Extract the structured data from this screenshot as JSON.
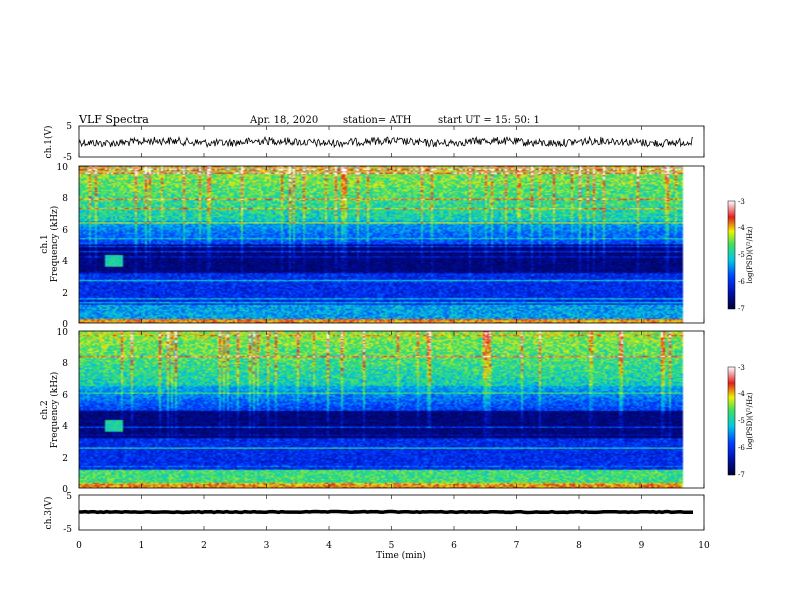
{
  "header": {
    "title": "VLF  Spectra",
    "date": "Apr. 18, 2020",
    "station": "station= ATH",
    "start": "start  UT  =    15: 50: 1"
  },
  "chart_data": [
    {
      "type": "line",
      "panel": "ch1-waveform",
      "ylabel": "ch.1(V)",
      "ylim": [
        -5,
        5
      ],
      "yticks": [
        "5",
        "-5"
      ],
      "xlim": [
        0,
        10
      ],
      "note": "noisy signal centred near 0 V"
    },
    {
      "type": "heatmap",
      "panel": "ch1-spectrogram",
      "ylabel_top": "ch.1",
      "ylabel": "Frequency  (kHz)",
      "ylim": [
        0,
        10
      ],
      "yticks": [
        "0",
        "2",
        "4",
        "6",
        "8",
        "10"
      ],
      "xlim": [
        0,
        10
      ],
      "colorbar": {
        "label": "log(PSD)(V²/Hz)",
        "ticks": [
          "-3",
          "-4",
          "-5",
          "-6",
          "-7"
        ],
        "range": [
          -7,
          -3
        ]
      }
    },
    {
      "type": "heatmap",
      "panel": "ch2-spectrogram",
      "ylabel_top": "ch.2",
      "ylabel": "Frequency  (kHz)",
      "ylim": [
        0,
        10
      ],
      "yticks": [
        "0",
        "2",
        "4",
        "6",
        "8",
        "10"
      ],
      "xlim": [
        0,
        10
      ],
      "colorbar": {
        "label": "log(PSD)(V²/Hz)",
        "ticks": [
          "-3",
          "-4",
          "-5",
          "-6",
          "-7"
        ],
        "range": [
          -7,
          -3
        ]
      }
    },
    {
      "type": "line",
      "panel": "ch3-waveform",
      "ylabel": "ch.3(V)",
      "ylim": [
        -5,
        5
      ],
      "yticks": [
        "5",
        "-5"
      ],
      "xlim": [
        0,
        10
      ],
      "xlabel": "Time  (min)",
      "xticks": [
        "0",
        "1",
        "2",
        "3",
        "4",
        "5",
        "6",
        "7",
        "8",
        "9",
        "10"
      ],
      "note": "near-constant level around -1 V"
    }
  ],
  "colors": {
    "deep": "#000033",
    "blue": "#1020d0",
    "cyan": "#00c8e6",
    "green": "#40e060",
    "yellow": "#f0f000",
    "red": "#e02020"
  }
}
